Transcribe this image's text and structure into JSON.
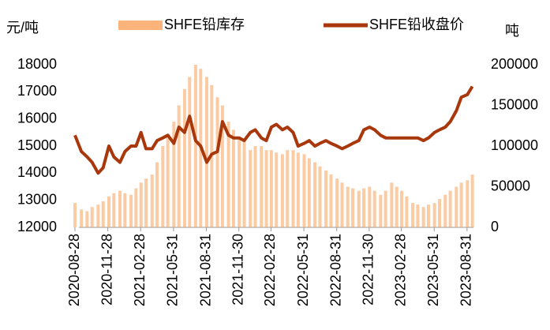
{
  "chart_data": {
    "type": "combo",
    "y_label": "元/吨",
    "y2_label": "吨",
    "x": [
      "2020-08-28",
      "2020-09-15",
      "2020-10-01",
      "2020-10-15",
      "2020-11-01",
      "2020-11-15",
      "2020-12-01",
      "2020-12-15",
      "2021-01-01",
      "2021-01-15",
      "2021-02-01",
      "2021-02-15",
      "2021-03-01",
      "2021-03-15",
      "2021-04-01",
      "2021-04-15",
      "2021-05-01",
      "2021-05-15",
      "2021-06-01",
      "2021-06-15",
      "2021-07-01",
      "2021-07-15",
      "2021-08-01",
      "2021-08-15",
      "2021-09-01",
      "2021-09-15",
      "2021-10-01",
      "2021-10-15",
      "2021-11-01",
      "2021-11-15",
      "2021-12-01",
      "2021-12-15",
      "2022-01-01",
      "2022-01-15",
      "2022-02-01",
      "2022-02-15",
      "2022-03-01",
      "2022-03-15",
      "2022-04-01",
      "2022-04-15",
      "2022-05-01",
      "2022-05-15",
      "2022-06-01",
      "2022-06-15",
      "2022-07-01",
      "2022-07-15",
      "2022-08-01",
      "2022-08-15",
      "2022-09-01",
      "2022-09-15",
      "2022-10-01",
      "2022-10-15",
      "2022-11-01",
      "2022-11-15",
      "2022-12-01",
      "2022-12-15",
      "2023-01-01",
      "2023-01-15",
      "2023-02-01",
      "2023-02-15",
      "2023-03-01",
      "2023-03-15",
      "2023-04-01",
      "2023-04-15",
      "2023-05-01",
      "2023-05-15",
      "2023-06-01",
      "2023-06-15",
      "2023-07-01",
      "2023-07-15",
      "2023-08-01",
      "2023-08-15",
      "2023-09-01",
      "2023-09-15"
    ],
    "series": [
      {
        "name": "SHFE铅库存",
        "type": "bar",
        "axis": "y2",
        "color": "#f7a05a",
        "values": [
          30000,
          22000,
          20000,
          25000,
          28000,
          32000,
          38000,
          42000,
          45000,
          42000,
          40000,
          48000,
          55000,
          60000,
          65000,
          80000,
          100000,
          115000,
          130000,
          150000,
          170000,
          185000,
          200000,
          195000,
          185000,
          175000,
          160000,
          150000,
          130000,
          120000,
          110000,
          105000,
          95000,
          100000,
          100000,
          95000,
          95000,
          92000,
          90000,
          95000,
          95000,
          92000,
          90000,
          85000,
          80000,
          75000,
          70000,
          65000,
          60000,
          55000,
          50000,
          48000,
          45000,
          48000,
          50000,
          45000,
          40000,
          45000,
          55000,
          50000,
          45000,
          38000,
          30000,
          28000,
          25000,
          28000,
          30000,
          35000,
          40000,
          45000,
          50000,
          55000,
          58000,
          65000
        ]
      },
      {
        "name": "SHFE铅收盘价",
        "type": "line",
        "axis": "y",
        "color": "#a8380c",
        "values": [
          15400,
          14800,
          14600,
          14400,
          14000,
          14200,
          15000,
          14600,
          14400,
          14800,
          15000,
          15000,
          15500,
          14900,
          14900,
          15200,
          15300,
          15400,
          15100,
          15700,
          15500,
          16100,
          15200,
          15000,
          14400,
          14700,
          14800,
          15900,
          15400,
          15300,
          15300,
          15200,
          15500,
          15600,
          15300,
          15200,
          15700,
          15800,
          15600,
          15700,
          15500,
          15000,
          15100,
          15200,
          15000,
          15100,
          15200,
          15100,
          15000,
          14900,
          15000,
          15100,
          15200,
          15600,
          15700,
          15600,
          15400,
          15300,
          15300,
          15300,
          15300,
          15300,
          15300,
          15300,
          15200,
          15300,
          15500,
          15600,
          15700,
          15900,
          16300,
          16800,
          16900,
          17200
        ]
      }
    ],
    "xlim": [
      "2020-08-28",
      "2023-09-18"
    ],
    "xticks": [
      "2020-08-28",
      "2020-11-28",
      "2021-02-28",
      "2021-05-31",
      "2021-08-31",
      "2021-11-30",
      "2022-02-28",
      "2022-05-31",
      "2022-08-31",
      "2022-11-30",
      "2023-02-28",
      "2023-05-31",
      "2023-08-31"
    ],
    "ylim": [
      12000,
      18000
    ],
    "yticks": [
      12000,
      13000,
      14000,
      15000,
      16000,
      17000,
      18000
    ],
    "y2lim": [
      0,
      200000
    ],
    "y2ticks": [
      0,
      50000,
      100000,
      150000,
      200000
    ]
  }
}
